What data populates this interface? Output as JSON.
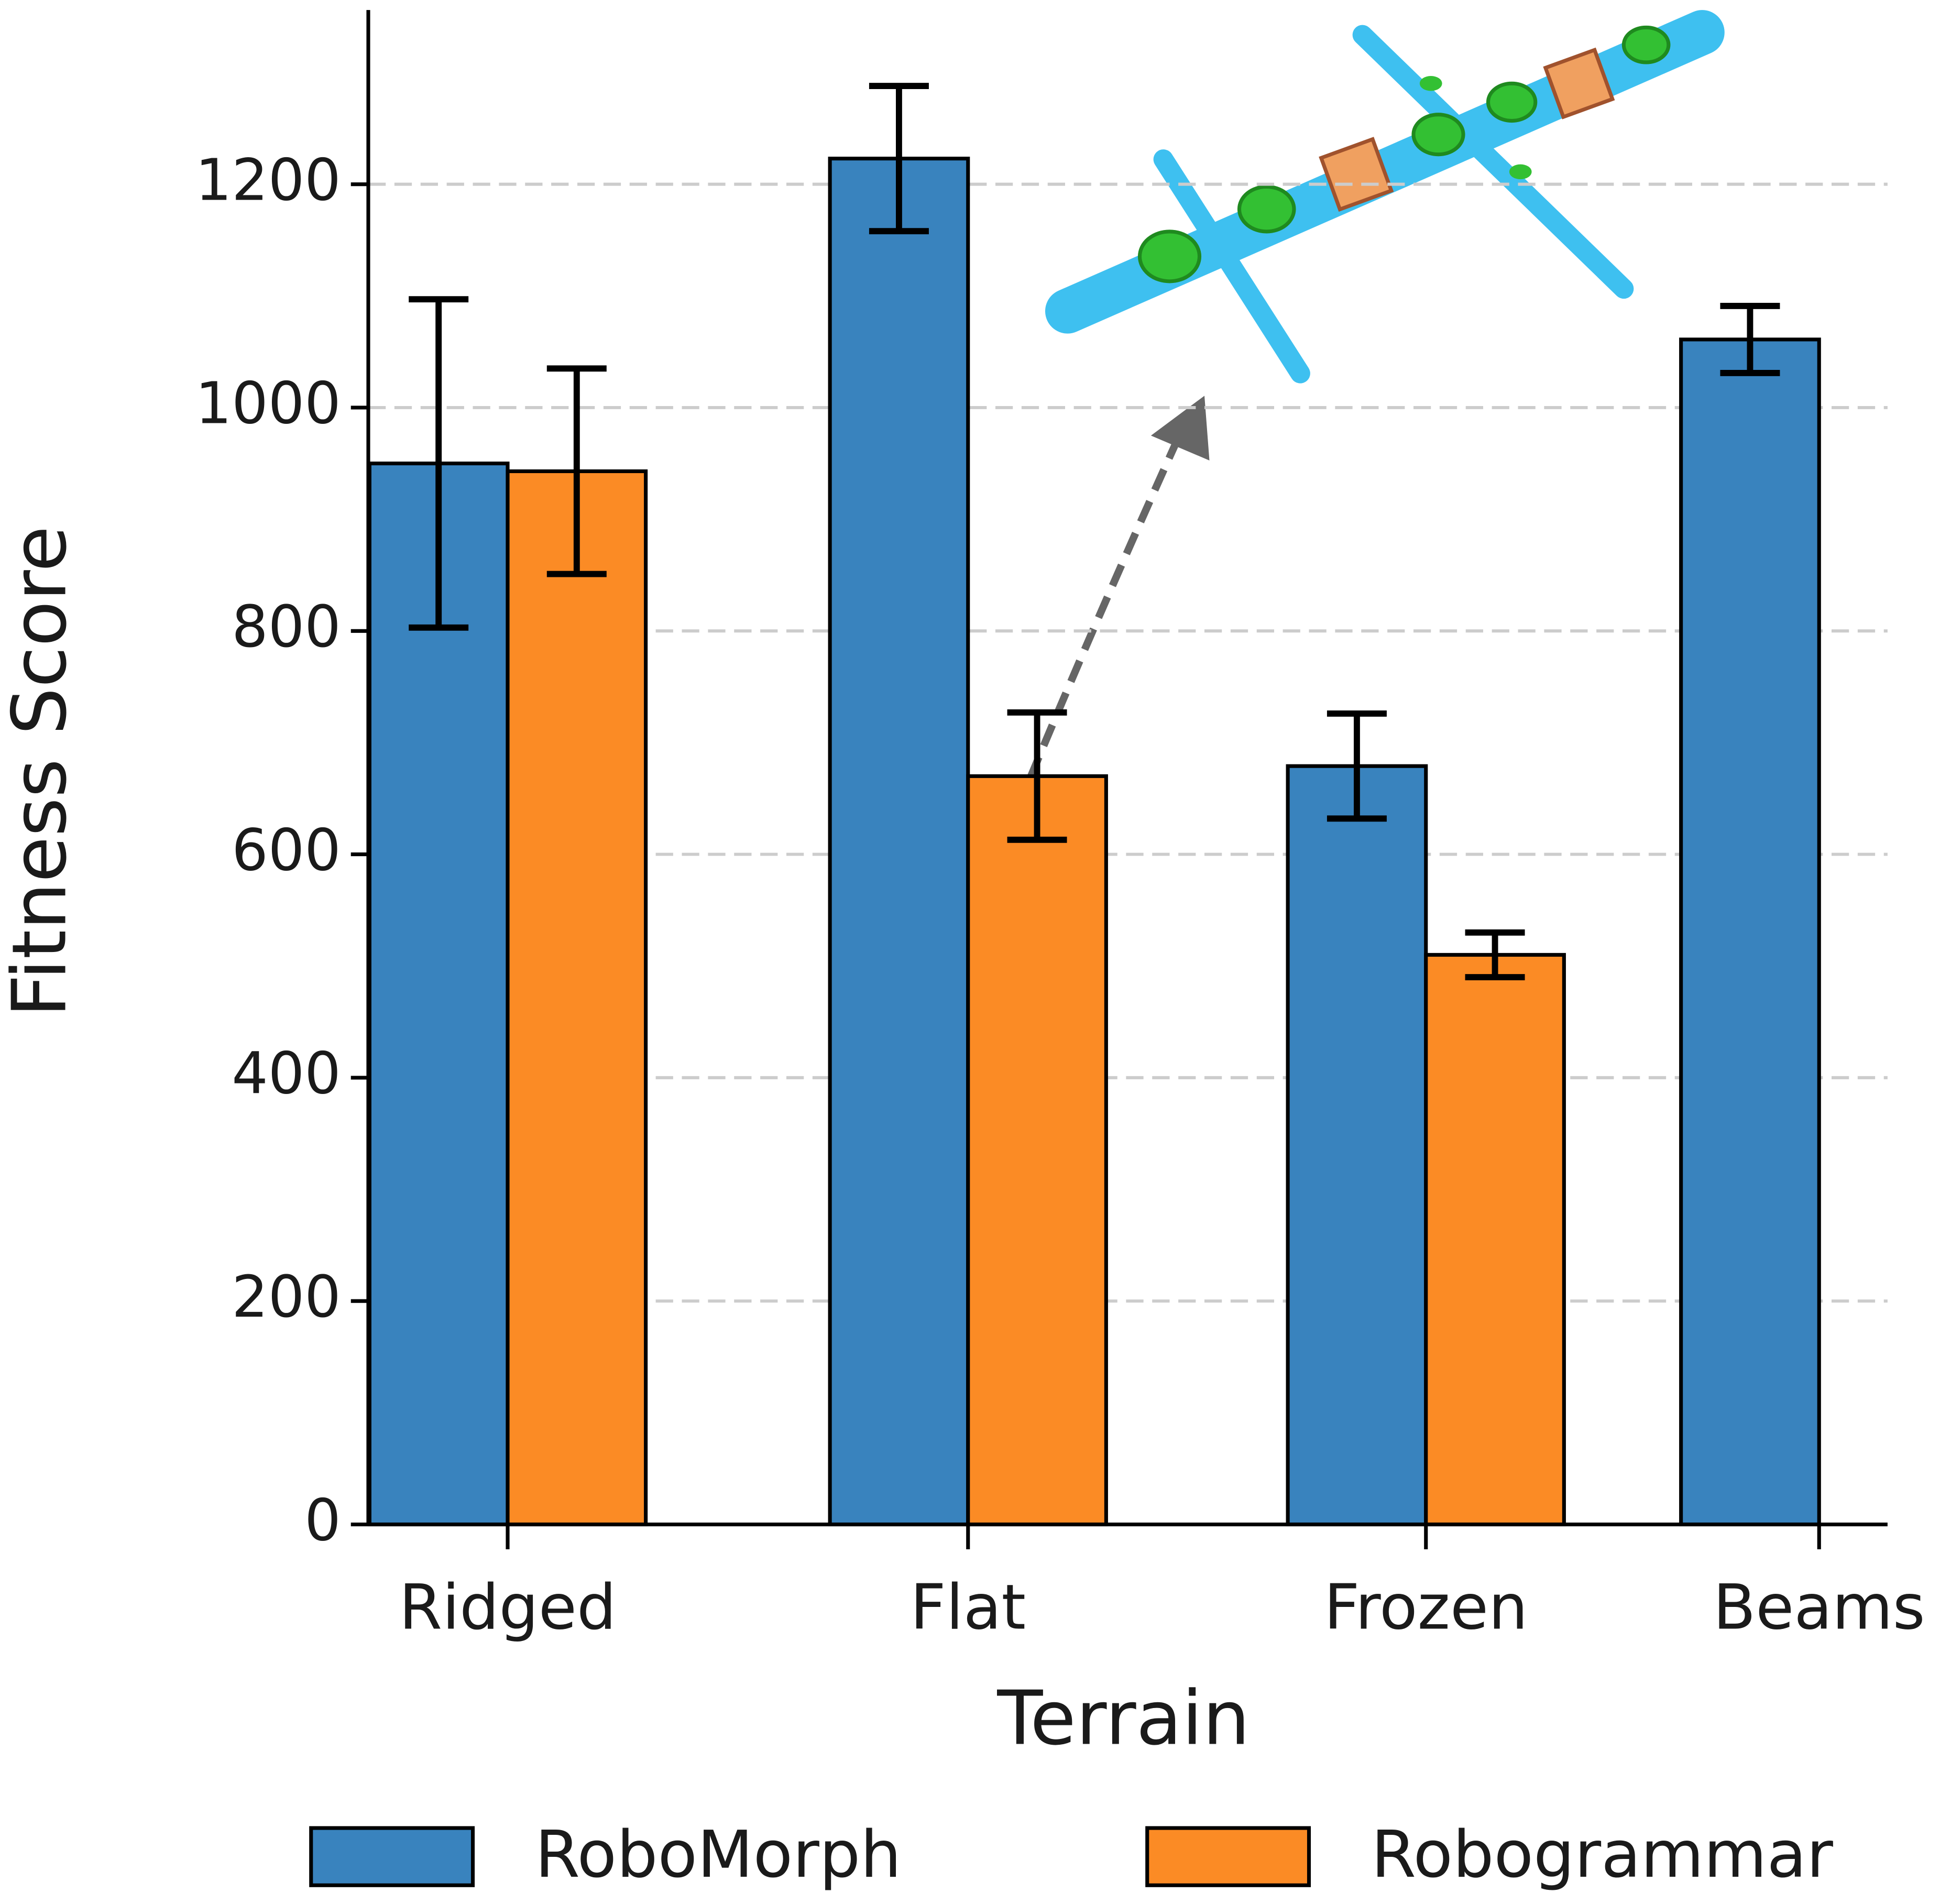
{
  "chart_data": {
    "type": "bar",
    "x_label": "Terrain",
    "y_label": "Fitness Score",
    "categories": [
      "Ridged",
      "Flat",
      "Frozen",
      "Beams"
    ],
    "series": [
      {
        "name": "RoboMorph",
        "color": "#3983be",
        "values": [
          950,
          1223,
          679,
          1061
        ],
        "errors": [
          147,
          65,
          47,
          30
        ]
      },
      {
        "name": "Robogrammar",
        "color": "#fb8b25",
        "values": [
          943,
          670,
          510,
          null
        ],
        "errors": [
          92,
          57,
          20,
          null
        ]
      }
    ],
    "ylim": [
      0,
      1356
    ],
    "yticks": [
      0,
      200,
      400,
      600,
      800,
      1000,
      1200
    ],
    "grid": true
  }
}
